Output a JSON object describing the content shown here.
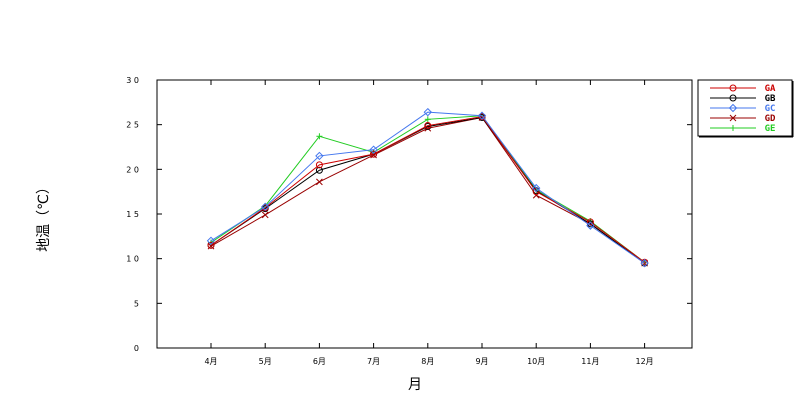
{
  "chart_data": {
    "type": "line",
    "xlabel": "月",
    "ylabel": "地温（℃）",
    "ylim": [
      0,
      30
    ],
    "yticks": [
      "0",
      "5",
      "10",
      "15",
      "20",
      "25",
      "30"
    ],
    "categories": [
      "4月",
      "5月",
      "6月",
      "7月",
      "8月",
      "9月",
      "10月",
      "11月",
      "12月"
    ],
    "grid": false,
    "legend_position": "top-right",
    "series": [
      {
        "name": "GA",
        "color": "#cc0000",
        "marker": "circle",
        "values": [
          11.5,
          15.7,
          20.5,
          21.7,
          24.9,
          25.9,
          17.5,
          14.1,
          9.6
        ]
      },
      {
        "name": "GB",
        "color": "#000000",
        "marker": "circle",
        "values": [
          11.5,
          15.6,
          19.9,
          21.7,
          24.8,
          25.8,
          17.6,
          13.9,
          9.5
        ]
      },
      {
        "name": "GC",
        "color": "#4477ee",
        "marker": "diamond",
        "values": [
          12.0,
          15.8,
          21.5,
          22.2,
          26.4,
          26.0,
          17.9,
          13.7,
          9.5
        ]
      },
      {
        "name": "GD",
        "color": "#990000",
        "marker": "x",
        "values": [
          11.4,
          14.9,
          18.6,
          21.6,
          24.6,
          25.8,
          17.1,
          13.9,
          9.5
        ]
      },
      {
        "name": "GE",
        "color": "#22cc22",
        "marker": "plus",
        "values": [
          11.8,
          15.9,
          23.7,
          21.9,
          25.6,
          26.0,
          17.7,
          14.2,
          9.6
        ]
      }
    ]
  }
}
